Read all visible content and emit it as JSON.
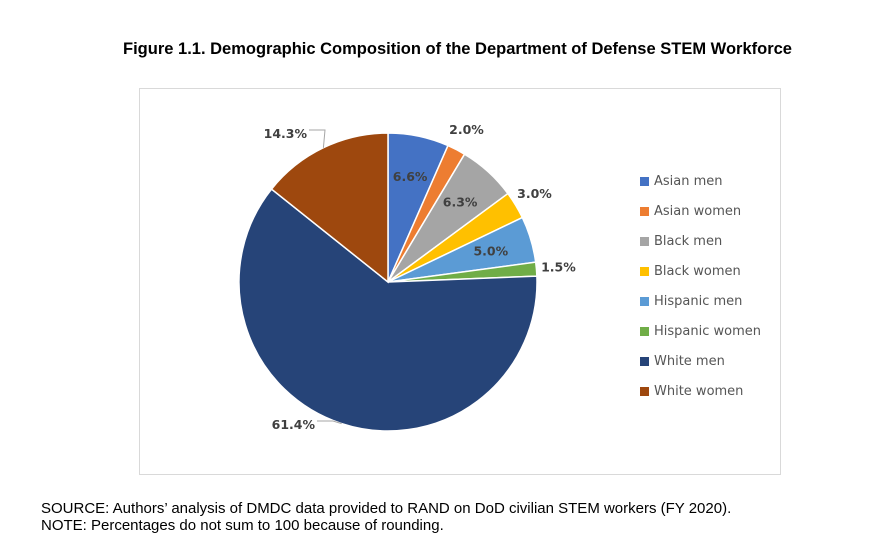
{
  "title": "Figure 1.1. Demographic Composition of the Department of Defense STEM Workforce",
  "chart_data": {
    "type": "pie",
    "title": "Figure 1.1. Demographic Composition of the Department of Defense STEM Workforce",
    "categories": [
      "Asian men",
      "Asian women",
      "Black men",
      "Black women",
      "Hispanic men",
      "Hispanic women",
      "White men",
      "White women"
    ],
    "values": [
      6.6,
      2.0,
      6.3,
      3.0,
      5.0,
      1.5,
      61.4,
      14.3
    ],
    "labels": [
      "6.6%",
      "2.0%",
      "6.3%",
      "3.0%",
      "5.0%",
      "1.5%",
      "61.4%",
      "14.3%"
    ],
    "colors": [
      "#4472C4",
      "#ED7D31",
      "#A5A5A5",
      "#FFC000",
      "#5B9BD5",
      "#70AD47",
      "#264478",
      "#9E480E"
    ],
    "start_angle_deg": 0,
    "direction": "clockwise",
    "legend_position": "right"
  },
  "footer": {
    "source": "SOURCE: Authors’ analysis of DMDC data provided to RAND on DoD civilian STEM workers (FY 2020).",
    "note": "NOTE: Percentages do not sum to 100 because of rounding."
  }
}
